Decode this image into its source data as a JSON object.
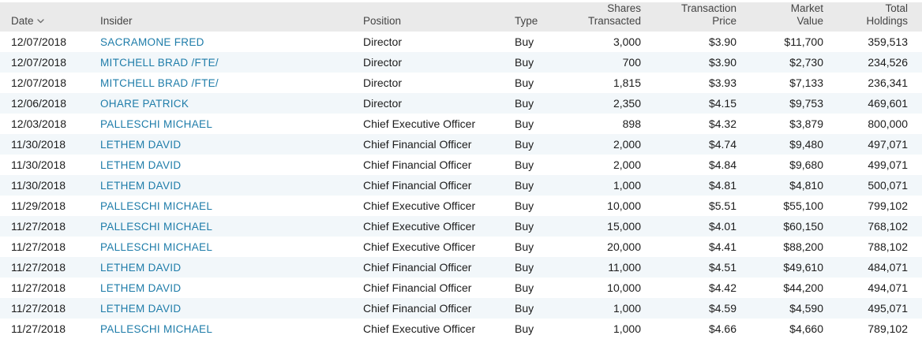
{
  "colors": {
    "header_bg": "#eaeaea",
    "header_text": "#454545",
    "row_stripe": "#f2f7fa",
    "body_text": "#1c1c1c",
    "insider_link": "#1e7ca9"
  },
  "table": {
    "columns": [
      {
        "id": "date",
        "label": "Date",
        "label_lines": [
          "Date"
        ],
        "align": "left",
        "sorted": "desc",
        "sort_icon": "chevron-down-icon"
      },
      {
        "id": "insider",
        "label": "Insider",
        "label_lines": [
          "Insider"
        ],
        "align": "left"
      },
      {
        "id": "position",
        "label": "Position",
        "label_lines": [
          "Position"
        ],
        "align": "left"
      },
      {
        "id": "type",
        "label": "Type",
        "label_lines": [
          "Type"
        ],
        "align": "left"
      },
      {
        "id": "shares_transacted",
        "label": "Shares Transacted",
        "label_lines": [
          "Shares",
          "Transacted"
        ],
        "align": "right"
      },
      {
        "id": "transaction_price",
        "label": "Transaction Price",
        "label_lines": [
          "Transaction",
          "Price"
        ],
        "align": "right"
      },
      {
        "id": "market_value",
        "label": "Market Value",
        "label_lines": [
          "Market",
          "Value"
        ],
        "align": "right"
      },
      {
        "id": "total_holdings",
        "label": "Total Holdings",
        "label_lines": [
          "Total",
          "Holdings"
        ],
        "align": "right"
      }
    ],
    "rows": [
      {
        "date": "12/07/2018",
        "insider": "SACRAMONE FRED",
        "position": "Director",
        "type": "Buy",
        "shares_transacted": "3,000",
        "transaction_price": "$3.90",
        "market_value": "$11,700",
        "total_holdings": "359,513"
      },
      {
        "date": "12/07/2018",
        "insider": "MITCHELL BRAD /FTE/",
        "position": "Director",
        "type": "Buy",
        "shares_transacted": "700",
        "transaction_price": "$3.90",
        "market_value": "$2,730",
        "total_holdings": "234,526"
      },
      {
        "date": "12/07/2018",
        "insider": "MITCHELL BRAD /FTE/",
        "position": "Director",
        "type": "Buy",
        "shares_transacted": "1,815",
        "transaction_price": "$3.93",
        "market_value": "$7,133",
        "total_holdings": "236,341"
      },
      {
        "date": "12/06/2018",
        "insider": "OHARE PATRICK",
        "position": "Director",
        "type": "Buy",
        "shares_transacted": "2,350",
        "transaction_price": "$4.15",
        "market_value": "$9,753",
        "total_holdings": "469,601"
      },
      {
        "date": "12/03/2018",
        "insider": "PALLESCHI MICHAEL",
        "position": "Chief Executive Officer",
        "type": "Buy",
        "shares_transacted": "898",
        "transaction_price": "$4.32",
        "market_value": "$3,879",
        "total_holdings": "800,000"
      },
      {
        "date": "11/30/2018",
        "insider": "LETHEM DAVID",
        "position": "Chief Financial Officer",
        "type": "Buy",
        "shares_transacted": "2,000",
        "transaction_price": "$4.74",
        "market_value": "$9,480",
        "total_holdings": "497,071"
      },
      {
        "date": "11/30/2018",
        "insider": "LETHEM DAVID",
        "position": "Chief Financial Officer",
        "type": "Buy",
        "shares_transacted": "2,000",
        "transaction_price": "$4.84",
        "market_value": "$9,680",
        "total_holdings": "499,071"
      },
      {
        "date": "11/30/2018",
        "insider": "LETHEM DAVID",
        "position": "Chief Financial Officer",
        "type": "Buy",
        "shares_transacted": "1,000",
        "transaction_price": "$4.81",
        "market_value": "$4,810",
        "total_holdings": "500,071"
      },
      {
        "date": "11/29/2018",
        "insider": "PALLESCHI MICHAEL",
        "position": "Chief Executive Officer",
        "type": "Buy",
        "shares_transacted": "10,000",
        "transaction_price": "$5.51",
        "market_value": "$55,100",
        "total_holdings": "799,102"
      },
      {
        "date": "11/27/2018",
        "insider": "PALLESCHI MICHAEL",
        "position": "Chief Executive Officer",
        "type": "Buy",
        "shares_transacted": "15,000",
        "transaction_price": "$4.01",
        "market_value": "$60,150",
        "total_holdings": "768,102"
      },
      {
        "date": "11/27/2018",
        "insider": "PALLESCHI MICHAEL",
        "position": "Chief Executive Officer",
        "type": "Buy",
        "shares_transacted": "20,000",
        "transaction_price": "$4.41",
        "market_value": "$88,200",
        "total_holdings": "788,102"
      },
      {
        "date": "11/27/2018",
        "insider": "LETHEM DAVID",
        "position": "Chief Financial Officer",
        "type": "Buy",
        "shares_transacted": "11,000",
        "transaction_price": "$4.51",
        "market_value": "$49,610",
        "total_holdings": "484,071"
      },
      {
        "date": "11/27/2018",
        "insider": "LETHEM DAVID",
        "position": "Chief Financial Officer",
        "type": "Buy",
        "shares_transacted": "10,000",
        "transaction_price": "$4.42",
        "market_value": "$44,200",
        "total_holdings": "494,071"
      },
      {
        "date": "11/27/2018",
        "insider": "LETHEM DAVID",
        "position": "Chief Financial Officer",
        "type": "Buy",
        "shares_transacted": "1,000",
        "transaction_price": "$4.59",
        "market_value": "$4,590",
        "total_holdings": "495,071"
      },
      {
        "date": "11/27/2018",
        "insider": "PALLESCHI MICHAEL",
        "position": "Chief Executive Officer",
        "type": "Buy",
        "shares_transacted": "1,000",
        "transaction_price": "$4.66",
        "market_value": "$4,660",
        "total_holdings": "789,102"
      }
    ]
  }
}
